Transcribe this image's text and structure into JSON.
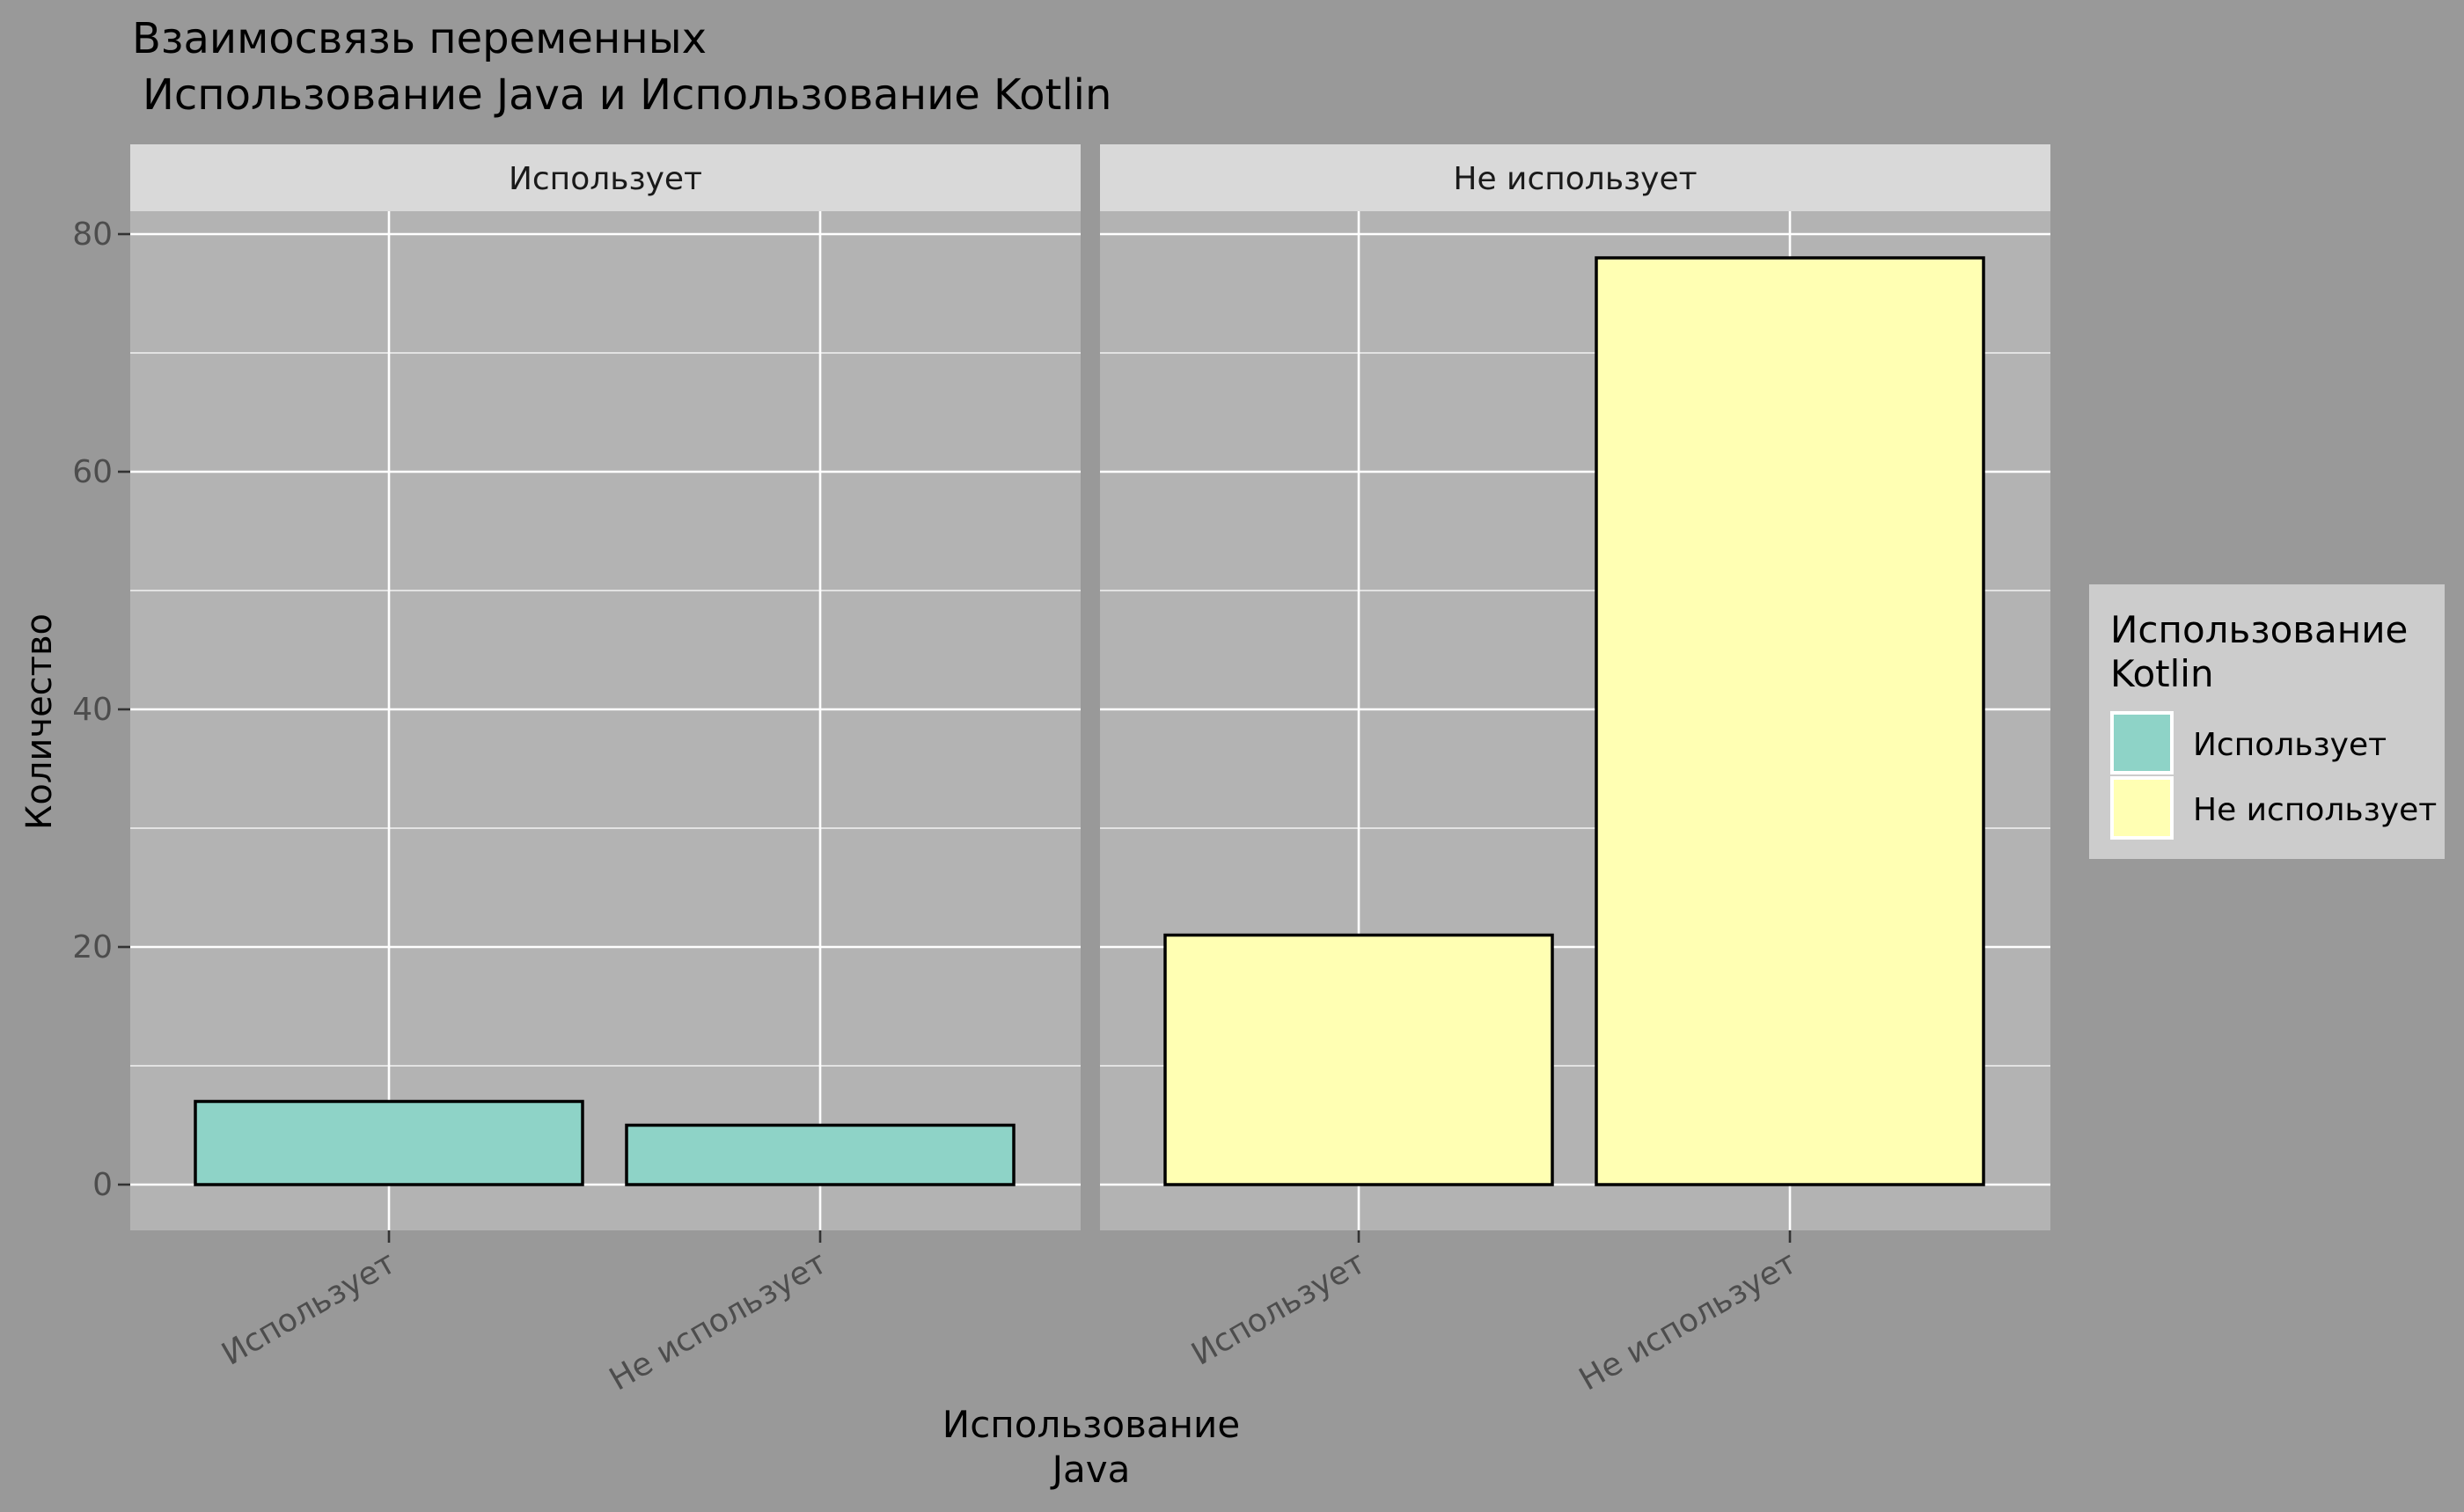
{
  "chart_data": {
    "type": "bar",
    "title_line1": "Взаимосвязь переменных",
    "title_line2": "Использование Java и Использование Kotlin",
    "xlabel_line1": "Использование",
    "xlabel_line2": "Java",
    "ylabel": "Количество",
    "ylim": [
      0,
      85
    ],
    "y_ticks": [
      "0",
      "20",
      "40",
      "60",
      "80"
    ],
    "y_tick_values": [
      0,
      20,
      40,
      60,
      80
    ],
    "categories": [
      "Использует",
      "Не использует"
    ],
    "facets": [
      {
        "label": "Использует",
        "values": [
          7,
          5
        ],
        "fills": [
          "Использует",
          "Использует"
        ]
      },
      {
        "label": "Не использует",
        "values": [
          21,
          78
        ],
        "fills": [
          "Не использует",
          "Не использует"
        ]
      }
    ],
    "legend": {
      "title_line1": "Использование",
      "title_line2": "Kotlin",
      "placement": "right",
      "items": [
        {
          "label": "Использует",
          "color": "#8ED3C7"
        },
        {
          "label": "Не использует",
          "color": "#FFFFB3"
        }
      ]
    },
    "grid": true
  },
  "colors": {
    "background": "#999999",
    "panel": "#B3B3B3",
    "strip": "#D9D9D9",
    "grid": "#FFFFFF",
    "legend_bg": "#CCCCCC"
  }
}
